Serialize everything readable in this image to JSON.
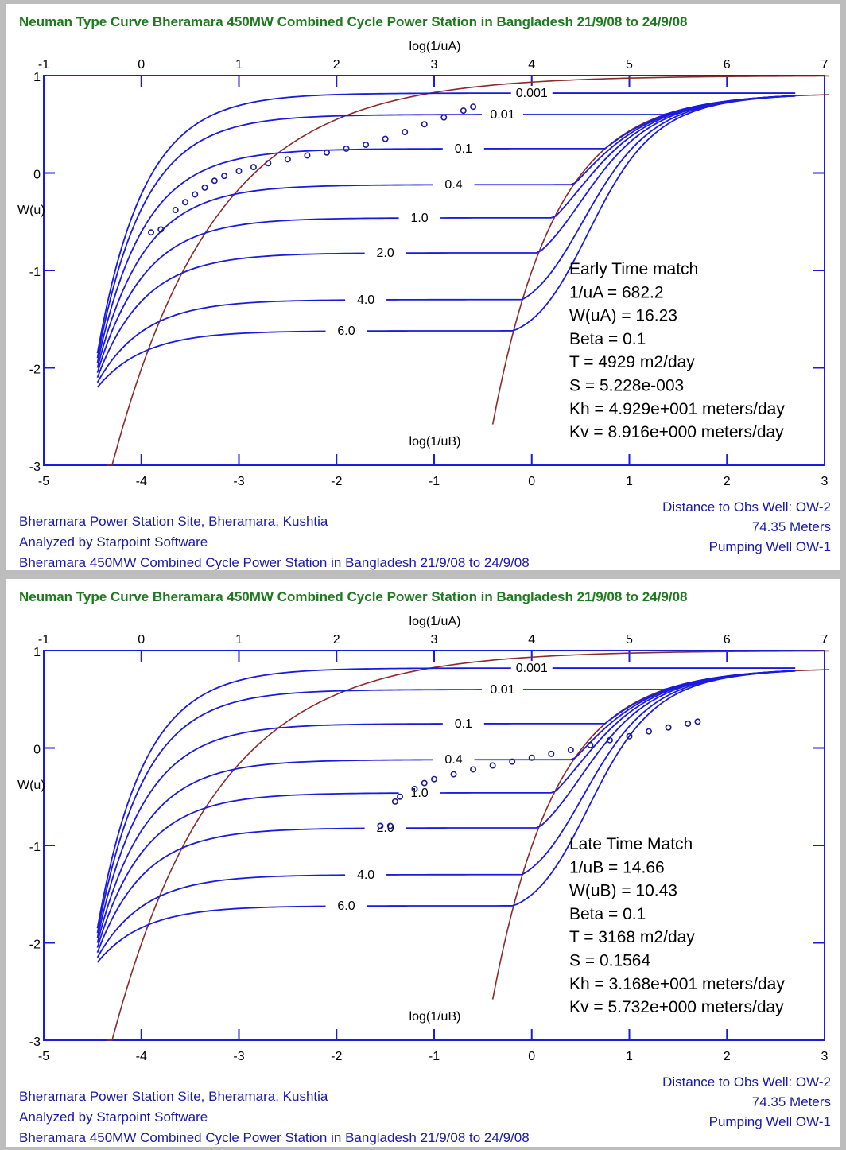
{
  "colors": {
    "curve": "#1a1ae0",
    "theis": "#8b2a2a",
    "obs": "#1a1a9c",
    "title": "#1f7a1f",
    "footer": "#1a1aa8"
  },
  "chart_data": [
    {
      "type": "line",
      "title": "Neuman Type Curve Bheramara 450MW Combined Cycle Power Station in Bangladesh 21/9/08 to 24/9/08",
      "top_axis_label": "log(1/uA)",
      "bottom_axis_label": "log(1/uB)",
      "ylabel": "W(u)",
      "top_ticks": [
        "-1",
        "0",
        "1",
        "2",
        "3",
        "4",
        "5",
        "6",
        "7"
      ],
      "bottom_ticks": [
        "-5",
        "-4",
        "-3",
        "-2",
        "-1",
        "0",
        "1",
        "2",
        "3"
      ],
      "y_ticks": [
        "1",
        "0",
        "-1",
        "-2",
        "-3"
      ],
      "top_range": [
        -1,
        7
      ],
      "bottom_range": [
        -5,
        3
      ],
      "ylim": [
        -3,
        1
      ],
      "beta_curves": [
        "0.001",
        "0.01",
        "0.1",
        "0.4",
        "1.0",
        "2.0",
        "4.0",
        "6.0"
      ],
      "observations": [
        [
          0.1,
          -0.61
        ],
        [
          0.2,
          -0.58
        ],
        [
          0.35,
          -0.38
        ],
        [
          0.45,
          -0.3
        ],
        [
          0.55,
          -0.22
        ],
        [
          0.65,
          -0.15
        ],
        [
          0.75,
          -0.08
        ],
        [
          0.85,
          -0.03
        ],
        [
          1.0,
          0.02
        ],
        [
          1.15,
          0.06
        ],
        [
          1.3,
          0.1
        ],
        [
          1.5,
          0.14
        ],
        [
          1.7,
          0.18
        ],
        [
          1.9,
          0.21
        ],
        [
          2.1,
          0.25
        ],
        [
          2.3,
          0.29
        ],
        [
          2.5,
          0.35
        ],
        [
          2.7,
          0.42
        ],
        [
          2.9,
          0.5
        ],
        [
          3.1,
          0.57
        ],
        [
          3.3,
          0.64
        ],
        [
          3.4,
          0.68
        ]
      ],
      "results_heading": "Early Time match",
      "results": [
        "1/uA = 682.2",
        "W(uA) = 16.23",
        "Beta = 0.1",
        "T = 4929 m2/day",
        "S = 5.228e-003",
        "Kh = 4.929e+001 meters/day",
        "Kv = 8.916e+000 meters/day"
      ],
      "footer_left": [
        "Bheramara Power Station Site, Bheramara, Kushtia",
        "Analyzed by Starpoint Software",
        "Bheramara 450MW Combined Cycle Power Station in Bangladesh 21/9/08 to 24/9/08"
      ],
      "footer_right": [
        "Distance to Obs Well: OW-2",
        "74.35 Meters",
        "Pumping Well OW-1"
      ]
    },
    {
      "type": "line",
      "title": "Neuman Type Curve Bheramara 450MW Combined Cycle Power Station in Bangladesh 21/9/08 to 24/9/08",
      "top_axis_label": "log(1/uA)",
      "bottom_axis_label": "log(1/uB)",
      "ylabel": "W(u)",
      "top_ticks": [
        "-1",
        "0",
        "1",
        "2",
        "3",
        "4",
        "5",
        "6",
        "7"
      ],
      "bottom_ticks": [
        "-5",
        "-4",
        "-3",
        "-2",
        "-1",
        "0",
        "1",
        "2",
        "3"
      ],
      "y_ticks": [
        "1",
        "0",
        "-1",
        "-2",
        "-3"
      ],
      "top_range": [
        -1,
        7
      ],
      "bottom_range": [
        -5,
        3
      ],
      "ylim": [
        -3,
        1
      ],
      "beta_curves": [
        "0.001",
        "0.01",
        "0.1",
        "0.4",
        "1.0",
        "2.0",
        "4.0",
        "6.0"
      ],
      "observations": [
        [
          2.45,
          -0.8
        ],
        [
          2.55,
          -0.8
        ],
        [
          2.6,
          -0.55
        ],
        [
          2.65,
          -0.5
        ],
        [
          2.8,
          -0.42
        ],
        [
          2.9,
          -0.36
        ],
        [
          3.0,
          -0.32
        ],
        [
          3.2,
          -0.27
        ],
        [
          3.4,
          -0.22
        ],
        [
          3.6,
          -0.18
        ],
        [
          3.8,
          -0.14
        ],
        [
          4.0,
          -0.1
        ],
        [
          4.2,
          -0.06
        ],
        [
          4.4,
          -0.02
        ],
        [
          4.6,
          0.03
        ],
        [
          4.8,
          0.08
        ],
        [
          5.0,
          0.12
        ],
        [
          5.2,
          0.17
        ],
        [
          5.4,
          0.21
        ],
        [
          5.6,
          0.25
        ],
        [
          5.7,
          0.27
        ]
      ],
      "results_heading": "Late Time Match",
      "results": [
        "1/uB = 14.66",
        "W(uB) = 10.43",
        "Beta = 0.1",
        "T = 3168 m2/day",
        "S = 0.1564",
        "Kh = 3.168e+001 meters/day",
        "Kv = 5.732e+000 meters/day"
      ],
      "footer_left": [
        "Bheramara Power Station Site, Bheramara, Kushtia",
        "Analyzed by Starpoint Software",
        "Bheramara 450MW Combined Cycle Power Station in Bangladesh 21/9/08 to 24/9/08"
      ],
      "footer_right": [
        "Distance to Obs Well: OW-2",
        "74.35 Meters",
        "Pumping Well OW-1"
      ]
    }
  ]
}
